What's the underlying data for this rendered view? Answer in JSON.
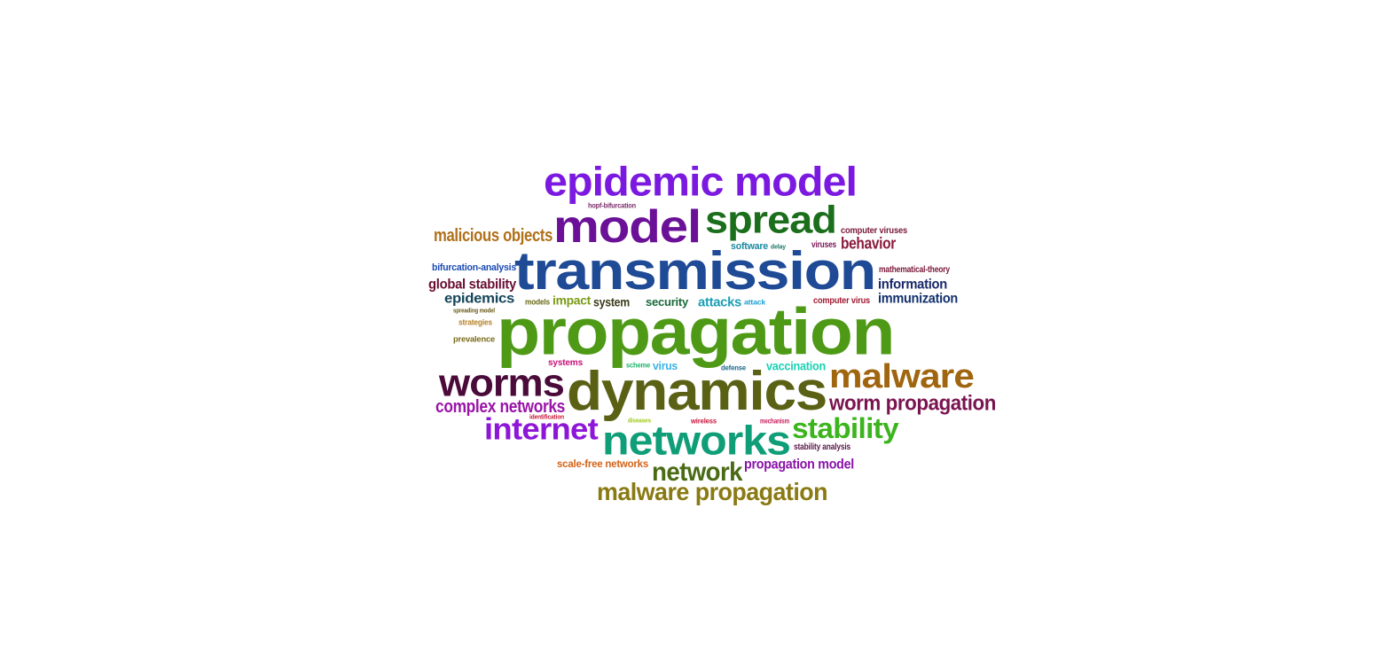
{
  "words": [
    {
      "id": "propagation",
      "text": "propagation",
      "color": "#4e9a16"
    },
    {
      "id": "transmission",
      "text": "transmission",
      "color": "#1e4a96"
    },
    {
      "id": "dynamics",
      "text": "dynamics",
      "color": "#5b6114"
    },
    {
      "id": "epidemic-model",
      "text": "epidemic model",
      "color": "#7b19e0"
    },
    {
      "id": "model",
      "text": "model",
      "color": "#6a1198"
    },
    {
      "id": "spread",
      "text": "spread",
      "color": "#1b6e1b"
    },
    {
      "id": "networks",
      "text": "networks",
      "color": "#0f9e78"
    },
    {
      "id": "worms",
      "text": "worms",
      "color": "#4a0a3a"
    },
    {
      "id": "malware",
      "text": "malware",
      "color": "#a0650f"
    },
    {
      "id": "internet",
      "text": "internet",
      "color": "#8d16d8"
    },
    {
      "id": "stability",
      "text": "stability",
      "color": "#3cb41e"
    },
    {
      "id": "network",
      "text": "network",
      "color": "#4a6a14"
    },
    {
      "id": "malware-propagation",
      "text": "malware propagation",
      "color": "#8a7a14"
    },
    {
      "id": "worm-propagation",
      "text": "worm propagation",
      "color": "#7a1450"
    },
    {
      "id": "complex-networks",
      "text": "complex networks",
      "color": "#9a14a8"
    },
    {
      "id": "malicious-objects",
      "text": "malicious objects",
      "color": "#b0701a"
    },
    {
      "id": "behavior",
      "text": "behavior",
      "color": "#8a1a3a"
    },
    {
      "id": "information",
      "text": "information",
      "color": "#1a2a6a"
    },
    {
      "id": "immunization",
      "text": "immunization",
      "color": "#14326e"
    },
    {
      "id": "global-stability",
      "text": "global stability",
      "color": "#6a0f32"
    },
    {
      "id": "epidemics",
      "text": "epidemics",
      "color": "#14465a"
    },
    {
      "id": "propagation-model",
      "text": "propagation model",
      "color": "#8a14a8"
    },
    {
      "id": "attacks",
      "text": "attacks",
      "color": "#1a9eb4"
    },
    {
      "id": "impact",
      "text": "impact",
      "color": "#7a9a14"
    },
    {
      "id": "system",
      "text": "system",
      "color": "#3a3a1a"
    },
    {
      "id": "security",
      "text": "security",
      "color": "#1a6a3a"
    },
    {
      "id": "vaccination",
      "text": "vaccination",
      "color": "#1ad2b4"
    },
    {
      "id": "virus",
      "text": "virus",
      "color": "#3ab4e6"
    },
    {
      "id": "scale-free-networks",
      "text": "scale-free networks",
      "color": "#d2641a"
    },
    {
      "id": "bifurcation-analysis",
      "text": "bifurcation-analysis",
      "color": "#1a4ab4"
    },
    {
      "id": "software",
      "text": "software",
      "color": "#1a8aa0"
    },
    {
      "id": "computer-viruses",
      "text": "computer viruses",
      "color": "#7a1a3a"
    },
    {
      "id": "viruses",
      "text": "viruses",
      "color": "#7a1a5a"
    },
    {
      "id": "mathematical-theory",
      "text": "mathematical-theory",
      "color": "#7a1a3a"
    },
    {
      "id": "computer-virus",
      "text": "computer virus",
      "color": "#a01a32"
    },
    {
      "id": "hopf-bifurcation",
      "text": "hopf-bifurcation",
      "color": "#7a2a6a"
    },
    {
      "id": "models",
      "text": "models",
      "color": "#6a6a1a"
    },
    {
      "id": "spreading-model",
      "text": "spreading model",
      "color": "#6a5a1a"
    },
    {
      "id": "strategies",
      "text": "strategies",
      "color": "#b4822a"
    },
    {
      "id": "prevalence",
      "text": "prevalence",
      "color": "#7a6a1a"
    },
    {
      "id": "systems",
      "text": "systems",
      "color": "#c8147a"
    },
    {
      "id": "scheme",
      "text": "scheme",
      "color": "#1ab46a"
    },
    {
      "id": "defense",
      "text": "defense",
      "color": "#1a6a8a"
    },
    {
      "id": "attack",
      "text": "attack",
      "color": "#1aa0d2"
    },
    {
      "id": "delay",
      "text": "delay",
      "color": "#1a7a6a"
    },
    {
      "id": "identification",
      "text": "identification",
      "color": "#c81a3a"
    },
    {
      "id": "diseases",
      "text": "diseases",
      "color": "#a0c81a"
    },
    {
      "id": "wireless",
      "text": "wireless",
      "color": "#c8143a"
    },
    {
      "id": "mechanism",
      "text": "mechanism",
      "color": "#c81a5a"
    },
    {
      "id": "stability-analysis",
      "text": "stability analysis",
      "color": "#5a1a4a"
    }
  ]
}
